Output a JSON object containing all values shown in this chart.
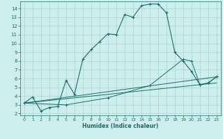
{
  "title": "",
  "xlabel": "Humidex (Indice chaleur)",
  "background_color": "#cceeed",
  "grid_color": "#aad4d2",
  "line_color": "#1a6b6b",
  "xlim": [
    -0.5,
    23.5
  ],
  "ylim": [
    1.8,
    14.8
  ],
  "xticks": [
    0,
    1,
    2,
    3,
    4,
    5,
    6,
    7,
    8,
    9,
    10,
    11,
    12,
    13,
    14,
    15,
    16,
    17,
    18,
    19,
    20,
    21,
    22,
    23
  ],
  "yticks": [
    2,
    3,
    4,
    5,
    6,
    7,
    8,
    9,
    10,
    11,
    12,
    13,
    14
  ],
  "series1": [
    [
      0,
      3.2
    ],
    [
      1,
      3.9
    ],
    [
      2,
      2.3
    ],
    [
      3,
      2.7
    ],
    [
      4,
      2.8
    ],
    [
      5,
      5.8
    ],
    [
      6,
      4.2
    ],
    [
      7,
      8.2
    ],
    [
      8,
      9.3
    ],
    [
      9,
      10.2
    ],
    [
      10,
      11.1
    ],
    [
      11,
      11.0
    ],
    [
      12,
      13.3
    ],
    [
      13,
      13.0
    ],
    [
      14,
      14.3
    ],
    [
      15,
      14.5
    ],
    [
      16,
      14.5
    ],
    [
      17,
      13.5
    ],
    [
      18,
      9.0
    ],
    [
      19,
      8.0
    ],
    [
      20,
      6.8
    ],
    [
      21,
      5.3
    ],
    [
      22,
      5.5
    ],
    [
      23,
      6.2
    ]
  ],
  "series2": [
    [
      0,
      3.2
    ],
    [
      23,
      5.5
    ]
  ],
  "series3": [
    [
      0,
      3.2
    ],
    [
      23,
      6.2
    ]
  ],
  "series4": [
    [
      0,
      3.2
    ],
    [
      5,
      3.0
    ],
    [
      10,
      3.8
    ],
    [
      15,
      5.2
    ],
    [
      19,
      8.2
    ],
    [
      20,
      8.0
    ],
    [
      21,
      5.3
    ],
    [
      22,
      5.5
    ],
    [
      23,
      6.2
    ]
  ]
}
